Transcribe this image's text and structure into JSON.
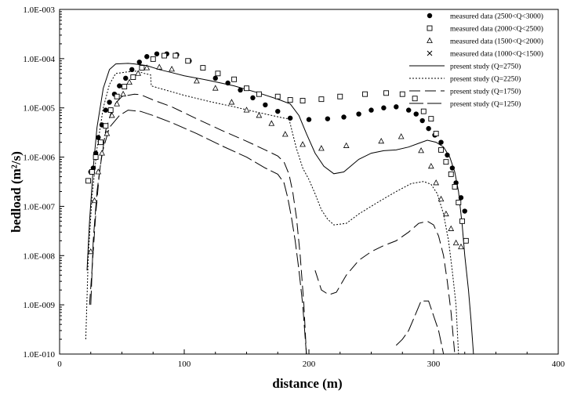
{
  "chart_data": {
    "type": "scatter",
    "title": "",
    "xlabel": "distance (m)",
    "ylabel": "bedload (m²/s)",
    "xlim": [
      0,
      400
    ],
    "ylim": [
      1e-10,
      0.001
    ],
    "yscale": "log",
    "grid": false,
    "legend_position": "top-right",
    "x_ticks": [
      "0",
      "100",
      "200",
      "300",
      "400"
    ],
    "y_ticks": [
      "1.0E-010",
      "1.0E-009",
      "1.0E-008",
      "1.0E-007",
      "1.0E-006",
      "1.0E-005",
      "1.0E-004",
      "1.0E-003"
    ],
    "series": [
      {
        "name": "measured data (2500<Q<3000)",
        "kind": "markers",
        "marker": "filled-circle",
        "points": [
          [
            25,
            5e-07
          ],
          [
            27,
            6e-07
          ],
          [
            29,
            1.2e-06
          ],
          [
            31,
            2.5e-06
          ],
          [
            34,
            4.5e-06
          ],
          [
            37,
            9e-06
          ],
          [
            40,
            1.3e-05
          ],
          [
            44,
            1.9e-05
          ],
          [
            48,
            2.8e-05
          ],
          [
            53,
            4e-05
          ],
          [
            58,
            6e-05
          ],
          [
            64,
            8.5e-05
          ],
          [
            70,
            0.00011
          ],
          [
            78,
            0.000125
          ],
          [
            86,
            0.000125
          ],
          [
            94,
            0.00012
          ],
          [
            104,
            9e-05
          ],
          [
            115,
            6.5e-05
          ],
          [
            125,
            4e-05
          ],
          [
            135,
            3.2e-05
          ],
          [
            145,
            2.3e-05
          ],
          [
            155,
            1.6e-05
          ],
          [
            165,
            1.15e-05
          ],
          [
            175,
            8.5e-06
          ],
          [
            185,
            6.2e-06
          ],
          [
            200,
            5.8e-06
          ],
          [
            215,
            6e-06
          ],
          [
            228,
            6.5e-06
          ],
          [
            240,
            7.5e-06
          ],
          [
            250,
            9e-06
          ],
          [
            260,
            1e-05
          ],
          [
            270,
            1.05e-05
          ],
          [
            280,
            9e-06
          ],
          [
            286,
            7.5e-06
          ],
          [
            291,
            5.5e-06
          ],
          [
            296,
            3.8e-06
          ],
          [
            301,
            2.8e-06
          ],
          [
            306,
            2e-06
          ],
          [
            311,
            1.1e-06
          ],
          [
            315,
            6e-07
          ],
          [
            318,
            3e-07
          ],
          [
            322,
            1.5e-07
          ],
          [
            325,
            8e-08
          ]
        ]
      },
      {
        "name": "measured data (2000<Q<2500)",
        "kind": "markers",
        "marker": "open-square",
        "points": [
          [
            23,
            3.3e-07
          ],
          [
            26,
            5e-07
          ],
          [
            29,
            1e-06
          ],
          [
            33,
            2e-06
          ],
          [
            37,
            4.3e-06
          ],
          [
            41,
            9e-06
          ],
          [
            46,
            1.7e-05
          ],
          [
            52,
            2.7e-05
          ],
          [
            59,
            4.2e-05
          ],
          [
            66,
            6.5e-05
          ],
          [
            75,
            9.8e-05
          ],
          [
            84,
            0.000115
          ],
          [
            93,
            0.000115
          ],
          [
            103,
            9e-05
          ],
          [
            115,
            6.5e-05
          ],
          [
            127,
            5e-05
          ],
          [
            140,
            3.8e-05
          ],
          [
            150,
            2.5e-05
          ],
          [
            160,
            1.9e-05
          ],
          [
            175,
            1.7e-05
          ],
          [
            185,
            1.45e-05
          ],
          [
            195,
            1.4e-05
          ],
          [
            210,
            1.5e-05
          ],
          [
            225,
            1.7e-05
          ],
          [
            245,
            1.9e-05
          ],
          [
            262,
            2e-05
          ],
          [
            275,
            1.9e-05
          ],
          [
            285,
            1.55e-05
          ],
          [
            292,
            8.5e-06
          ],
          [
            298,
            6e-06
          ],
          [
            302,
            3e-06
          ],
          [
            306,
            1.4e-06
          ],
          [
            310,
            8e-07
          ],
          [
            314,
            4.5e-07
          ],
          [
            317,
            2.5e-07
          ],
          [
            320,
            1.2e-07
          ],
          [
            323,
            5e-08
          ],
          [
            326,
            2e-08
          ]
        ]
      },
      {
        "name": "measured data (1500<Q<2000)",
        "kind": "markers",
        "marker": "open-triangle",
        "points": [
          [
            25,
            1.2e-08
          ],
          [
            28,
            1.3e-07
          ],
          [
            31,
            5e-07
          ],
          [
            34,
            1.2e-06
          ],
          [
            38,
            3e-06
          ],
          [
            42,
            7e-06
          ],
          [
            46,
            1.2e-05
          ],
          [
            51,
            1.9e-05
          ],
          [
            56,
            3.3e-05
          ],
          [
            63,
            5e-05
          ],
          [
            70,
            6.5e-05
          ],
          [
            80,
            6.7e-05
          ],
          [
            90,
            6.1e-05
          ],
          [
            110,
            3.5e-05
          ],
          [
            125,
            2.5e-05
          ],
          [
            138,
            1.3e-05
          ],
          [
            150,
            9e-06
          ],
          [
            160,
            7e-06
          ],
          [
            170,
            4.8e-06
          ],
          [
            181,
            2.9e-06
          ],
          [
            195,
            1.8e-06
          ],
          [
            210,
            1.5e-06
          ],
          [
            230,
            1.7e-06
          ],
          [
            258,
            2.1e-06
          ],
          [
            274,
            2.6e-06
          ],
          [
            290,
            1.35e-06
          ],
          [
            298,
            6.5e-07
          ],
          [
            302,
            3e-07
          ],
          [
            306,
            1.4e-07
          ],
          [
            310,
            7e-08
          ],
          [
            314,
            3.5e-08
          ],
          [
            318,
            1.8e-08
          ],
          [
            322,
            1.5e-08
          ]
        ]
      },
      {
        "name": "measured data (1000<Q<1500)",
        "kind": "markers",
        "marker": "cross",
        "points": []
      },
      {
        "name": "present study (Q=2750)",
        "kind": "line",
        "dash": "solid",
        "points": [
          [
            22,
            5e-09
          ],
          [
            24,
            5e-08
          ],
          [
            27,
            6e-07
          ],
          [
            30,
            4e-06
          ],
          [
            35,
            2.5e-05
          ],
          [
            40,
            6e-05
          ],
          [
            45,
            7.8e-05
          ],
          [
            55,
            8e-05
          ],
          [
            60,
            7.8e-05
          ],
          [
            70,
            7.2e-05
          ],
          [
            80,
            6e-05
          ],
          [
            90,
            5.2e-05
          ],
          [
            100,
            4.5e-05
          ],
          [
            120,
            3.6e-05
          ],
          [
            140,
            2.8e-05
          ],
          [
            160,
            2e-05
          ],
          [
            175,
            1.5e-05
          ],
          [
            185,
            1.2e-05
          ],
          [
            192,
            7e-06
          ],
          [
            198,
            3e-06
          ],
          [
            205,
            1.2e-06
          ],
          [
            212,
            6.5e-07
          ],
          [
            220,
            4.6e-07
          ],
          [
            228,
            5e-07
          ],
          [
            240,
            9e-07
          ],
          [
            250,
            1.2e-06
          ],
          [
            260,
            1.35e-06
          ],
          [
            270,
            1.4e-06
          ],
          [
            280,
            1.6e-06
          ],
          [
            288,
            1.9e-06
          ],
          [
            295,
            2.2e-06
          ],
          [
            302,
            2e-06
          ],
          [
            308,
            1.6e-06
          ],
          [
            313,
            1e-06
          ],
          [
            317,
            5e-07
          ],
          [
            320,
            2e-07
          ],
          [
            323,
            4e-08
          ],
          [
            325,
            1e-08
          ],
          [
            328,
            2e-09
          ],
          [
            330,
            5e-10
          ],
          [
            332,
            1e-10
          ]
        ]
      },
      {
        "name": "present study (Q=2250)",
        "kind": "line",
        "dash": "dotted",
        "points": [
          [
            21,
            2e-10
          ],
          [
            23,
            1e-08
          ],
          [
            26,
            1.5e-07
          ],
          [
            30,
            1.5e-06
          ],
          [
            35,
            1e-05
          ],
          [
            40,
            3e-05
          ],
          [
            45,
            5e-05
          ],
          [
            55,
            5.4e-05
          ],
          [
            62,
            5.6e-05
          ],
          [
            68,
            5e-05
          ],
          [
            73,
            4.7e-05
          ],
          [
            73.5,
            2.8e-05
          ],
          [
            80,
            2.5e-05
          ],
          [
            100,
            1.8e-05
          ],
          [
            120,
            1.35e-05
          ],
          [
            140,
            1.05e-05
          ],
          [
            160,
            8e-06
          ],
          [
            180,
            6.2e-06
          ],
          [
            184,
            6e-06
          ],
          [
            187,
            3e-06
          ],
          [
            190,
            1.5e-06
          ],
          [
            195,
            6e-07
          ],
          [
            200,
            3.5e-07
          ],
          [
            205,
            1.8e-07
          ],
          [
            210,
            8.5e-08
          ],
          [
            215,
            5.5e-08
          ],
          [
            220,
            4.2e-08
          ],
          [
            230,
            4.5e-08
          ],
          [
            240,
            7e-08
          ],
          [
            255,
            1.2e-07
          ],
          [
            270,
            2e-07
          ],
          [
            282,
            2.9e-07
          ],
          [
            292,
            3.2e-07
          ],
          [
            298,
            2.8e-07
          ],
          [
            303,
            1.8e-07
          ],
          [
            308,
            7e-08
          ],
          [
            312,
            2e-08
          ],
          [
            315,
            5e-09
          ],
          [
            318,
            1e-09
          ],
          [
            320,
            1e-10
          ]
        ]
      },
      {
        "name": "present study (Q=1750)",
        "kind": "line",
        "dash": "long-dash",
        "points": [
          [
            24,
            1e-09
          ],
          [
            26,
            5e-09
          ],
          [
            29,
            7e-08
          ],
          [
            32,
            5e-07
          ],
          [
            37,
            3.5e-06
          ],
          [
            43,
            1.1e-05
          ],
          [
            50,
            1.7e-05
          ],
          [
            60,
            1.9e-05
          ],
          [
            65,
            1.85e-05
          ],
          [
            75,
            1.45e-05
          ],
          [
            90,
            1.05e-05
          ],
          [
            110,
            6e-06
          ],
          [
            130,
            3.5e-06
          ],
          [
            150,
            2.1e-06
          ],
          [
            165,
            1.4e-06
          ],
          [
            175,
            1.05e-06
          ],
          [
            180,
            8e-07
          ],
          [
            184,
            4.5e-07
          ],
          [
            187,
            2e-07
          ],
          [
            190,
            6e-08
          ],
          [
            193,
            1e-08
          ],
          [
            196,
            1e-09
          ],
          [
            198,
            1e-10
          ]
        ]
      },
      {
        "name": "present study (Q=1750) branch",
        "kind": "line",
        "dash": "long-dash",
        "points": [
          [
            205,
            5e-09
          ],
          [
            210,
            2e-09
          ],
          [
            216,
            1.6e-09
          ],
          [
            222,
            1.8e-09
          ],
          [
            230,
            4e-09
          ],
          [
            240,
            8e-09
          ],
          [
            250,
            1.2e-08
          ],
          [
            260,
            1.6e-08
          ],
          [
            270,
            2e-08
          ],
          [
            280,
            3e-08
          ],
          [
            288,
            4.5e-08
          ],
          [
            295,
            5e-08
          ],
          [
            300,
            4.2e-08
          ],
          [
            304,
            2.5e-08
          ],
          [
            308,
            1e-08
          ],
          [
            311,
            3e-09
          ],
          [
            314,
            7e-10
          ],
          [
            317,
            1e-10
          ]
        ]
      },
      {
        "name": "present study (Q=1250)",
        "kind": "line",
        "dash": "dash-dot",
        "points": [
          [
            25,
            1e-09
          ],
          [
            27,
            2e-08
          ],
          [
            30,
            2e-07
          ],
          [
            34,
            1.2e-06
          ],
          [
            40,
            4e-06
          ],
          [
            48,
            7e-06
          ],
          [
            55,
            9e-06
          ],
          [
            65,
            8.5e-06
          ],
          [
            75,
            7e-06
          ],
          [
            90,
            5e-06
          ],
          [
            110,
            3e-06
          ],
          [
            130,
            1.7e-06
          ],
          [
            150,
            1e-06
          ],
          [
            165,
            6e-07
          ],
          [
            175,
            4.5e-07
          ],
          [
            180,
            3e-07
          ],
          [
            183,
            1.5e-07
          ],
          [
            186,
            6e-08
          ],
          [
            189,
            2e-08
          ],
          [
            192,
            5e-09
          ],
          [
            195,
            1e-09
          ],
          [
            198,
            1e-10
          ]
        ]
      },
      {
        "name": "present study (Q=1250) branch",
        "kind": "line",
        "dash": "dash-dot",
        "points": [
          [
            270,
            1.5e-10
          ],
          [
            275,
            2e-10
          ],
          [
            280,
            3e-10
          ],
          [
            285,
            6e-10
          ],
          [
            290,
            1.2e-09
          ],
          [
            296,
            1.2e-09
          ],
          [
            300,
            6e-10
          ],
          [
            304,
            3e-10
          ],
          [
            308,
            1e-10
          ]
        ]
      }
    ]
  }
}
